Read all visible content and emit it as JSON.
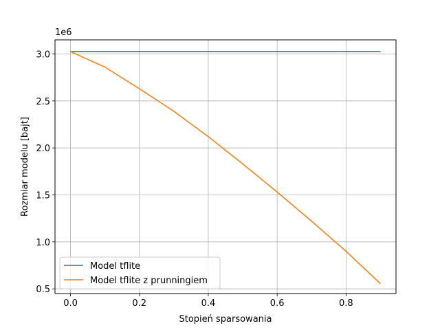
{
  "chart_data": {
    "type": "line",
    "title": "",
    "xlabel": "Stopień sparsowania",
    "ylabel": "Rozmiar modelu [bajt]",
    "y_offset_text": "1e6",
    "y_scale": 1000000,
    "xlim": [
      -0.045,
      0.945
    ],
    "ylim": [
      450000,
      3150000
    ],
    "x_ticks": [
      0.0,
      0.2,
      0.4,
      0.6,
      0.8
    ],
    "x_tick_labels": [
      "0.0",
      "0.2",
      "0.4",
      "0.6",
      "0.8"
    ],
    "y_ticks": [
      500000,
      1000000,
      1500000,
      2000000,
      2500000,
      3000000
    ],
    "y_tick_labels": [
      "0.5",
      "1.0",
      "1.5",
      "2.0",
      "2.5",
      "3.0"
    ],
    "grid": true,
    "legend_position": "lower-left",
    "x": [
      0.0,
      0.1,
      0.2,
      0.3,
      0.4,
      0.5,
      0.6,
      0.7,
      0.8,
      0.9
    ],
    "series": [
      {
        "name": "Model tflite",
        "color": "#1f77b4",
        "values": [
          3025000,
          3025000,
          3025000,
          3025000,
          3025000,
          3025000,
          3025000,
          3025000,
          3025000,
          3025000
        ]
      },
      {
        "name": "Model tflite z prunningiem",
        "color": "#ff7f0e",
        "values": [
          3025000,
          2860000,
          2630000,
          2390000,
          2120000,
          1830000,
          1530000,
          1220000,
          900000,
          555000
        ]
      }
    ]
  }
}
